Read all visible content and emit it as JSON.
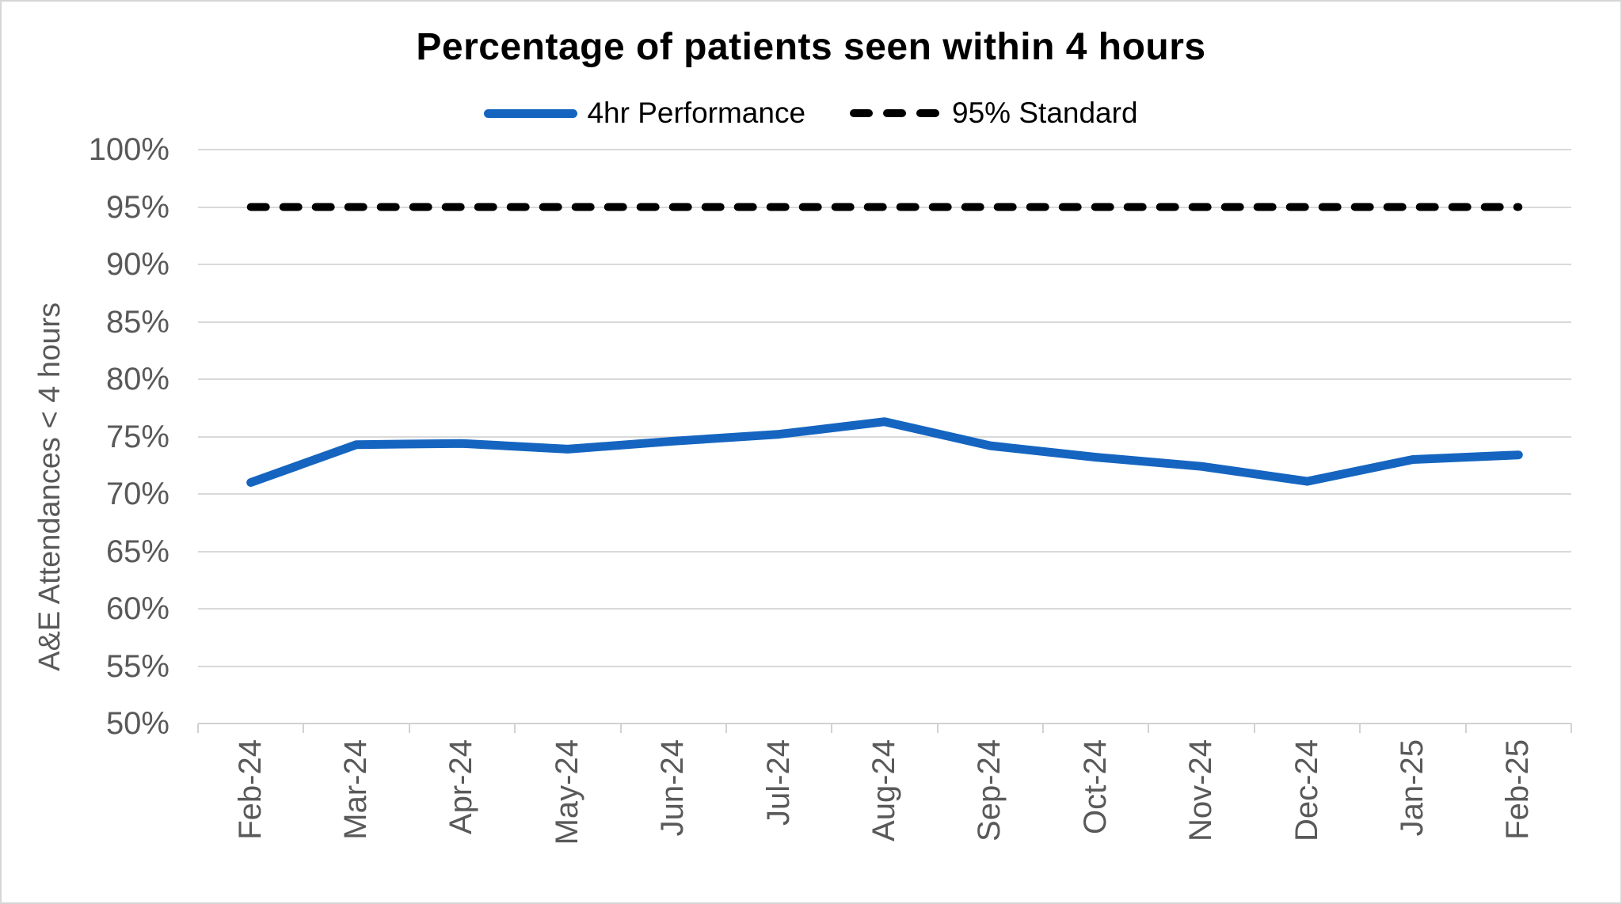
{
  "window": {
    "background": "#ffffff",
    "border_color": "#d6d6d6"
  },
  "colors": {
    "performance_line": "#1565C0",
    "standard_line": "#000000",
    "gridline": "#d9d9d9",
    "axis": "#d2d2d2",
    "tick_text": "#595959",
    "title_text": "#000000"
  },
  "chart_data": {
    "type": "line",
    "title": "Percentage of patients seen within 4 hours",
    "xlabel": "",
    "ylabel": "A&E Attendances < 4 hours",
    "ylim": [
      50,
      100
    ],
    "ytick_step": 5,
    "ytick_labels": [
      "100%",
      "95%",
      "90%",
      "85%",
      "80%",
      "75%",
      "70%",
      "65%",
      "60%",
      "55%",
      "50%"
    ],
    "grid": "horizontal",
    "legend_position": "top",
    "categories": [
      "Feb-24",
      "Mar-24",
      "Apr-24",
      "May-24",
      "Jun-24",
      "Jul-24",
      "Aug-24",
      "Sep-24",
      "Oct-24",
      "Nov-24",
      "Dec-24",
      "Jan-25",
      "Feb-25"
    ],
    "series": [
      {
        "name": "4hr Performance",
        "style": "solid",
        "color": "#1565C0",
        "values": [
          71.0,
          74.3,
          74.4,
          73.9,
          74.6,
          75.2,
          76.3,
          74.2,
          73.2,
          72.4,
          71.1,
          73.0,
          73.4
        ]
      },
      {
        "name": "95% Standard",
        "style": "dashed",
        "color": "#000000",
        "values": [
          95,
          95,
          95,
          95,
          95,
          95,
          95,
          95,
          95,
          95,
          95,
          95,
          95
        ]
      }
    ]
  },
  "legend": {
    "items": [
      {
        "label": "4hr Performance"
      },
      {
        "label": "95% Standard"
      }
    ]
  }
}
